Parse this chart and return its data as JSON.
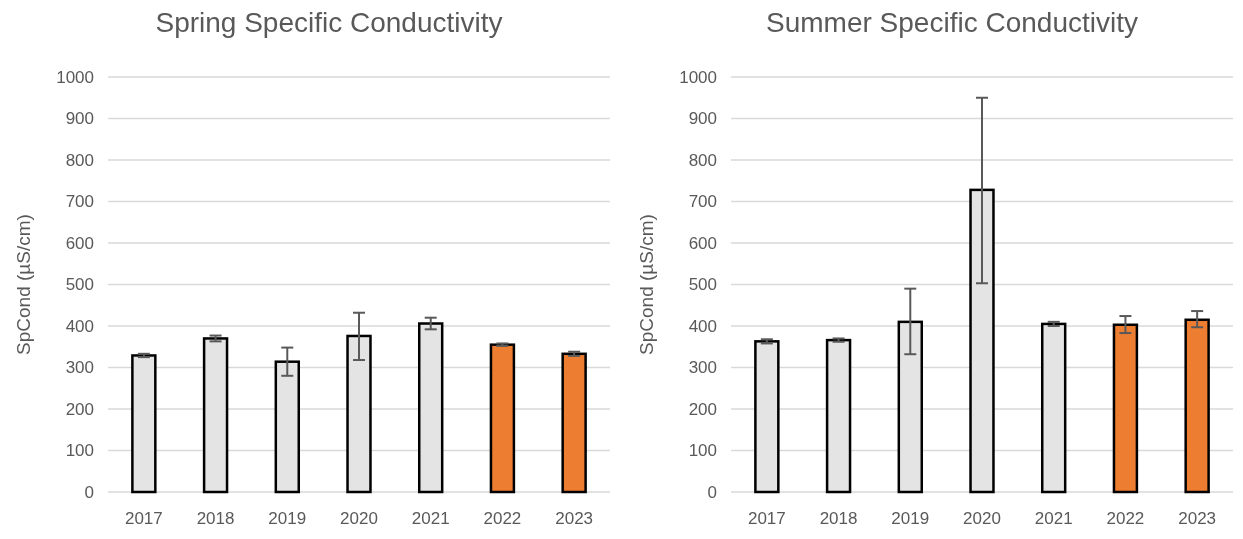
{
  "chart_data": [
    {
      "type": "bar",
      "title": "Spring Specific Conductivity",
      "ylabel": "SpCond (µS/cm)",
      "categories": [
        "2017",
        "2018",
        "2019",
        "2020",
        "2021",
        "2022",
        "2023"
      ],
      "values": [
        329,
        370,
        314,
        376,
        406,
        355,
        333
      ],
      "errors": [
        4,
        7,
        [
          280,
          348
        ],
        [
          318,
          432
        ],
        [
          392,
          420
        ],
        3,
        5
      ],
      "colors": [
        "#e4e4e4",
        "#e4e4e4",
        "#e4e4e4",
        "#e4e4e4",
        "#e4e4e4",
        "#ed7d31",
        "#ed7d31"
      ],
      "ylim": [
        0,
        1000
      ],
      "yticks": [
        0,
        100,
        200,
        300,
        400,
        500,
        600,
        700,
        800,
        900,
        1000
      ],
      "grid": "y"
    },
    {
      "type": "bar",
      "title": "Summer Specific Conductivity",
      "ylabel": "SpCond (µS/cm)",
      "categories": [
        "2017",
        "2018",
        "2019",
        "2020",
        "2021",
        "2022",
        "2023"
      ],
      "values": [
        363,
        366,
        410,
        728,
        405,
        403,
        415
      ],
      "errors": [
        5,
        4,
        [
          332,
          490
        ],
        [
          503,
          950
        ],
        5,
        [
          383,
          424
        ],
        [
          397,
          436
        ]
      ],
      "colors": [
        "#e4e4e4",
        "#e4e4e4",
        "#e4e4e4",
        "#e4e4e4",
        "#e4e4e4",
        "#ed7d31",
        "#ed7d31"
      ],
      "ylim": [
        0,
        1000
      ],
      "yticks": [
        0,
        100,
        200,
        300,
        400,
        500,
        600,
        700,
        800,
        900,
        1000
      ],
      "grid": "y"
    }
  ]
}
